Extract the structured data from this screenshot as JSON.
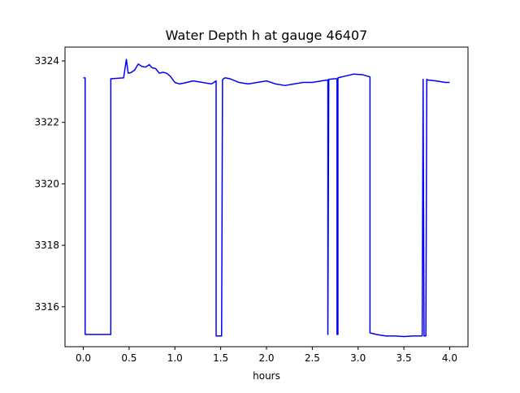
{
  "chart_data": {
    "type": "line",
    "title": "Water Depth h at gauge 46407",
    "xlabel": "hours",
    "ylabel": "",
    "xlim": [
      -0.2,
      4.2
    ],
    "ylim": [
      3314.7,
      3324.45
    ],
    "xticks": [
      0.0,
      0.5,
      1.0,
      1.5,
      2.0,
      2.5,
      3.0,
      3.5,
      4.0
    ],
    "xtick_labels": [
      "0.0",
      "0.5",
      "1.0",
      "1.5",
      "2.0",
      "2.5",
      "3.0",
      "3.5",
      "4.0"
    ],
    "yticks": [
      3316,
      3318,
      3320,
      3322,
      3324
    ],
    "ytick_labels": [
      "3316",
      "3318",
      "3320",
      "3322",
      "3324"
    ],
    "grid": false,
    "series": [
      {
        "name": "",
        "color": "#0000ff",
        "x": [
          0.0,
          0.02,
          0.02,
          0.3,
          0.3,
          0.44,
          0.47,
          0.49,
          0.52,
          0.56,
          0.6,
          0.64,
          0.68,
          0.72,
          0.75,
          0.79,
          0.83,
          0.87,
          0.91,
          0.95,
          1.0,
          1.05,
          1.1,
          1.2,
          1.3,
          1.4,
          1.45,
          1.45,
          1.51,
          1.52,
          1.53,
          1.55,
          1.6,
          1.7,
          1.8,
          1.9,
          2.0,
          2.05,
          2.1,
          2.2,
          2.3,
          2.4,
          2.5,
          2.6,
          2.67,
          2.67,
          2.68,
          2.68,
          2.74,
          2.77,
          2.77,
          2.78,
          2.78,
          2.85,
          2.95,
          3.05,
          3.13,
          3.13,
          3.2,
          3.3,
          3.4,
          3.5,
          3.6,
          3.7,
          3.71,
          3.72,
          3.74,
          3.75,
          3.76,
          3.85,
          3.95,
          4.0
        ],
        "y": [
          3323.45,
          3323.45,
          3315.1,
          3315.1,
          3323.42,
          3323.45,
          3324.05,
          3323.6,
          3323.62,
          3323.7,
          3323.9,
          3323.82,
          3323.8,
          3323.88,
          3323.78,
          3323.75,
          3323.6,
          3323.63,
          3323.6,
          3323.5,
          3323.3,
          3323.25,
          3323.28,
          3323.35,
          3323.3,
          3323.25,
          3323.35,
          3315.05,
          3315.05,
          3323.38,
          3323.42,
          3323.45,
          3323.42,
          3323.3,
          3323.25,
          3323.3,
          3323.35,
          3323.3,
          3323.25,
          3323.2,
          3323.25,
          3323.3,
          3323.3,
          3323.35,
          3323.38,
          3315.1,
          3323.4,
          3323.4,
          3323.42,
          3323.42,
          3315.1,
          3315.1,
          3323.45,
          3323.5,
          3323.57,
          3323.55,
          3323.48,
          3315.15,
          3315.1,
          3315.05,
          3315.05,
          3315.03,
          3315.05,
          3315.05,
          3323.4,
          3315.05,
          3315.05,
          3323.4,
          3323.38,
          3323.35,
          3323.3,
          3323.3
        ]
      }
    ]
  }
}
